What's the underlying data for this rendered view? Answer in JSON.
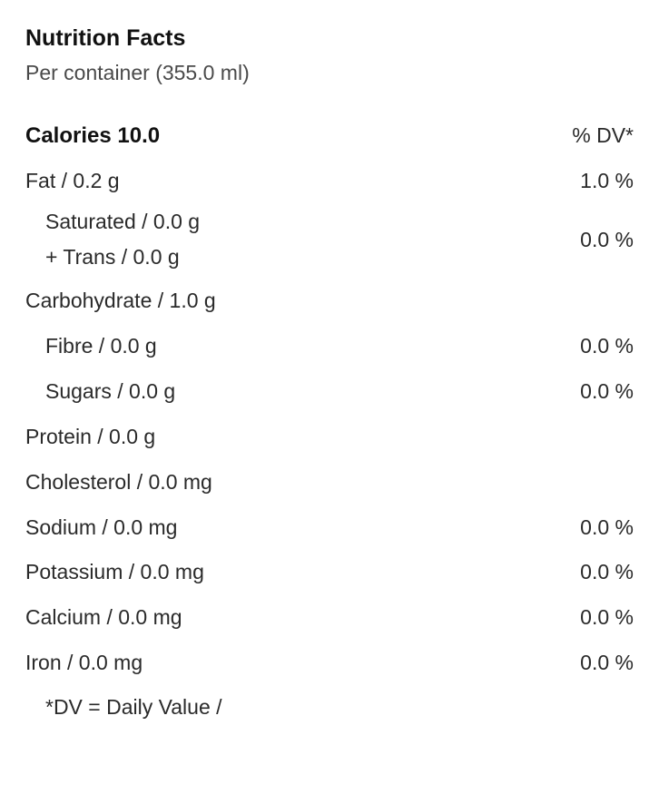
{
  "title": "Nutrition Facts",
  "subtitle": "Per container (355.0 ml)",
  "header": {
    "calories_label": "Calories 10.0",
    "dv_label": "% DV*"
  },
  "fat": {
    "label": "Fat / 0.2 g",
    "dv": "1.0 %"
  },
  "saturated": {
    "label": "Saturated / 0.0 g"
  },
  "trans": {
    "label": "+ Trans / 0.0 g"
  },
  "sat_trans_dv": "0.0 %",
  "carbohydrate": {
    "label": "Carbohydrate / 1.0 g"
  },
  "fibre": {
    "label": "Fibre / 0.0 g",
    "dv": "0.0 %"
  },
  "sugars": {
    "label": "Sugars / 0.0 g",
    "dv": "0.0 %"
  },
  "protein": {
    "label": "Protein / 0.0 g"
  },
  "cholesterol": {
    "label": "Cholesterol / 0.0 mg"
  },
  "sodium": {
    "label": "Sodium / 0.0 mg",
    "dv": "0.0 %"
  },
  "potassium": {
    "label": "Potassium / 0.0 mg",
    "dv": "0.0 %"
  },
  "calcium": {
    "label": "Calcium / 0.0 mg",
    "dv": "0.0 %"
  },
  "iron": {
    "label": "Iron / 0.0 mg",
    "dv": "0.0 %"
  },
  "footnote": "*DV = Daily Value /"
}
